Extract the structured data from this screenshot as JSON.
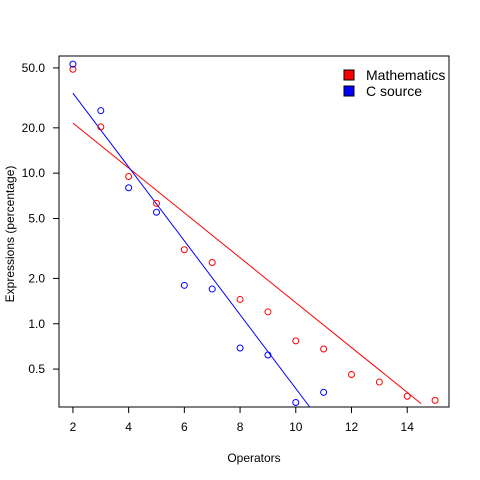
{
  "chart_data": {
    "type": "scatter",
    "title": "",
    "xlabel": "Operators",
    "ylabel": "Expressions (percentage)",
    "xlim": [
      1.5,
      15.5
    ],
    "ylim": [
      0.28,
      60
    ],
    "y_scale": "log",
    "x_ticks": [
      "2",
      "4",
      "6",
      "8",
      "10",
      "12",
      "14"
    ],
    "y_ticks": [
      "0.5",
      "1.0",
      "2.0",
      "5.0",
      "10.0",
      "20.0",
      "50.0"
    ],
    "grid": false,
    "legend_position": "top-right",
    "series": [
      {
        "name": "Mathematics",
        "color": "#ff0000",
        "x": [
          2,
          3,
          4,
          5,
          6,
          7,
          8,
          9,
          10,
          11,
          12,
          13,
          14,
          15
        ],
        "y": [
          49,
          20.3,
          9.5,
          6.3,
          3.1,
          2.55,
          1.45,
          1.2,
          0.77,
          0.68,
          0.46,
          0.41,
          0.33,
          0.31
        ],
        "fit_line": {
          "x": [
            2,
            14.5
          ],
          "y": [
            21.5,
            0.295
          ]
        }
      },
      {
        "name": "C source",
        "color": "#0000ff",
        "x": [
          2,
          3,
          4,
          5,
          6,
          7,
          8,
          9,
          10,
          11
        ],
        "y": [
          53,
          26,
          8,
          5.5,
          1.8,
          1.7,
          0.69,
          0.62,
          0.3,
          0.35
        ],
        "fit_line": {
          "x": [
            2,
            10.5
          ],
          "y": [
            34,
            0.28
          ]
        }
      }
    ]
  }
}
